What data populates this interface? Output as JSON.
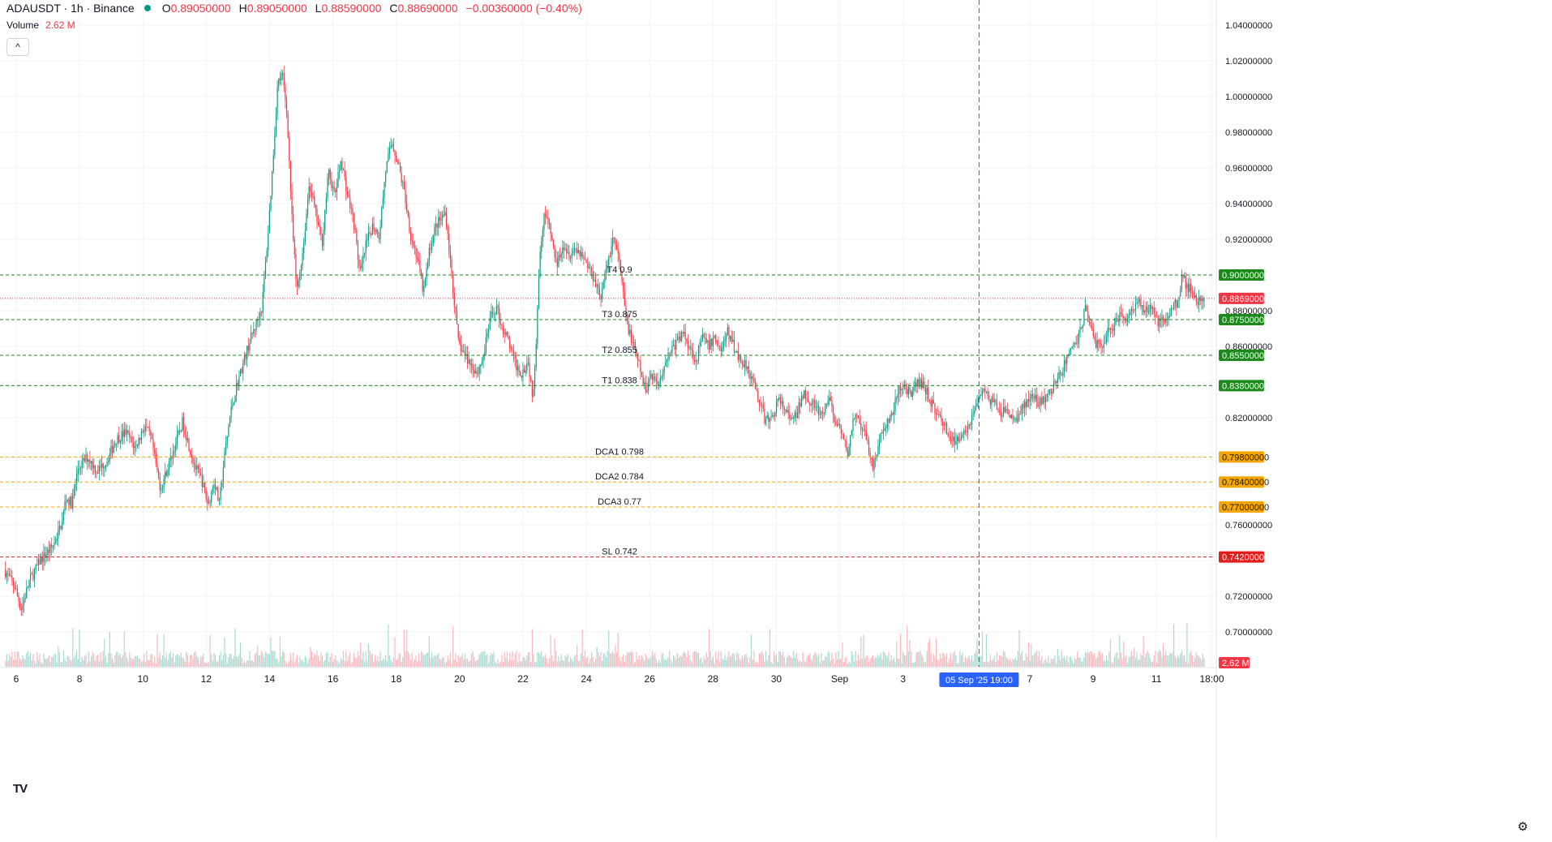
{
  "symbol": {
    "title": "ADAUSDT · 1h · Binance",
    "ohlc": [
      {
        "k": "O",
        "v": "0.89050000"
      },
      {
        "k": "H",
        "v": "0.89050000"
      },
      {
        "k": "L",
        "v": "0.88590000"
      },
      {
        "k": "C",
        "v": "0.88690000"
      },
      {
        "k": "",
        "v": "−0.00360000 (−0.40%)"
      }
    ]
  },
  "volume": {
    "label": "Volume",
    "value": "2.62 M",
    "badge": "2.62 M"
  },
  "controls": {
    "collapse": "^",
    "logo": "TV",
    "settings": "⚙"
  },
  "colors": {
    "up": "#089981",
    "down": "#f23645",
    "green_level": "#1b8a1b",
    "orange_level": "#f7a600",
    "red_level": "#e51c1c",
    "crosshair": "#2962ff"
  },
  "chart_data": {
    "type": "candlestick",
    "y_axis": {
      "min": 0.71,
      "max": 1.044,
      "ticks": [
        1.04,
        1.02,
        1.0,
        0.98,
        0.96,
        0.94,
        0.92,
        0.88,
        0.86,
        0.82,
        0.76,
        0.72,
        0.7
      ],
      "tick_labels": [
        "1.04000000",
        "1.02000000",
        "1.00000000",
        "0.98000000",
        "0.96000000",
        "0.94000000",
        "0.92000000",
        "0.88000000",
        "0.86000000",
        "0.82000000",
        "0.76000000",
        "0.72000000",
        "0.70000000"
      ]
    },
    "x_axis": {
      "tick_labels": [
        "6",
        "8",
        "10",
        "12",
        "14",
        "16",
        "18",
        "20",
        "22",
        "24",
        "26",
        "28",
        "30",
        "Sep",
        "3",
        "7",
        "9",
        "11",
        "18:00"
      ],
      "tick_days": [
        6,
        8,
        10,
        12,
        14,
        16,
        18,
        20,
        22,
        24,
        26,
        28,
        30,
        32,
        34,
        38,
        40,
        42,
        43.75
      ],
      "start_day": 5.66,
      "end_day": 43.55
    },
    "levels": [
      {
        "label": "T4 0.9",
        "value": 0.9,
        "badge": "0.90000000",
        "kind": "green"
      },
      {
        "label": "T3 0.875",
        "value": 0.875,
        "badge": "0.87500000",
        "kind": "green"
      },
      {
        "label": "T2 0.855",
        "value": 0.855,
        "badge": "0.85500000",
        "kind": "green"
      },
      {
        "label": "T1 0.838",
        "value": 0.838,
        "badge": "0.83800000",
        "kind": "green"
      },
      {
        "label": "DCA1 0.798",
        "value": 0.798,
        "badge": "0.79800000",
        "kind": "orange"
      },
      {
        "label": "DCA2 0.784",
        "value": 0.784,
        "badge": "0.78400000",
        "kind": "orange"
      },
      {
        "label": "DCA3 0.77",
        "value": 0.77,
        "badge": "0.77000000",
        "kind": "orange"
      },
      {
        "label": "SL 0.742",
        "value": 0.742,
        "badge": "0.74200000",
        "kind": "red"
      }
    ],
    "current_price": {
      "value": 0.8869,
      "badge": "0.88690000"
    },
    "crosshair": {
      "day": 36.4,
      "label": "05 Sep '25   19:00"
    },
    "price_path": [
      [
        5.66,
        0.735
      ],
      [
        6.0,
        0.725
      ],
      [
        6.2,
        0.713
      ],
      [
        6.45,
        0.728
      ],
      [
        6.8,
        0.74
      ],
      [
        7.2,
        0.748
      ],
      [
        7.5,
        0.762
      ],
      [
        7.6,
        0.775
      ],
      [
        7.8,
        0.772
      ],
      [
        8.0,
        0.792
      ],
      [
        8.3,
        0.798
      ],
      [
        8.6,
        0.79
      ],
      [
        8.9,
        0.796
      ],
      [
        9.2,
        0.808
      ],
      [
        9.5,
        0.812
      ],
      [
        9.8,
        0.803
      ],
      [
        10.1,
        0.816
      ],
      [
        10.3,
        0.808
      ],
      [
        10.6,
        0.78
      ],
      [
        10.9,
        0.796
      ],
      [
        11.1,
        0.807
      ],
      [
        11.3,
        0.818
      ],
      [
        11.5,
        0.804
      ],
      [
        11.7,
        0.792
      ],
      [
        11.9,
        0.785
      ],
      [
        12.1,
        0.771
      ],
      [
        12.3,
        0.785
      ],
      [
        12.45,
        0.771
      ],
      [
        12.6,
        0.796
      ],
      [
        12.8,
        0.822
      ],
      [
        13.0,
        0.838
      ],
      [
        13.2,
        0.85
      ],
      [
        13.4,
        0.862
      ],
      [
        13.6,
        0.872
      ],
      [
        13.8,
        0.882
      ],
      [
        14.0,
        0.925
      ],
      [
        14.15,
        0.965
      ],
      [
        14.3,
        1.008
      ],
      [
        14.45,
        1.012
      ],
      [
        14.6,
        0.988
      ],
      [
        14.75,
        0.93
      ],
      [
        14.9,
        0.89
      ],
      [
        15.1,
        0.915
      ],
      [
        15.3,
        0.952
      ],
      [
        15.5,
        0.934
      ],
      [
        15.7,
        0.918
      ],
      [
        15.9,
        0.958
      ],
      [
        16.1,
        0.944
      ],
      [
        16.3,
        0.965
      ],
      [
        16.5,
        0.945
      ],
      [
        16.7,
        0.93
      ],
      [
        16.9,
        0.9
      ],
      [
        17.1,
        0.918
      ],
      [
        17.3,
        0.928
      ],
      [
        17.5,
        0.922
      ],
      [
        17.7,
        0.958
      ],
      [
        17.9,
        0.975
      ],
      [
        18.1,
        0.962
      ],
      [
        18.3,
        0.946
      ],
      [
        18.5,
        0.922
      ],
      [
        18.7,
        0.91
      ],
      [
        18.9,
        0.89
      ],
      [
        19.1,
        0.915
      ],
      [
        19.3,
        0.928
      ],
      [
        19.6,
        0.935
      ],
      [
        19.8,
        0.898
      ],
      [
        20.0,
        0.862
      ],
      [
        20.2,
        0.855
      ],
      [
        20.4,
        0.85
      ],
      [
        20.6,
        0.845
      ],
      [
        20.8,
        0.855
      ],
      [
        21.0,
        0.875
      ],
      [
        21.2,
        0.882
      ],
      [
        21.4,
        0.87
      ],
      [
        21.6,
        0.862
      ],
      [
        21.8,
        0.85
      ],
      [
        22.0,
        0.845
      ],
      [
        22.2,
        0.852
      ],
      [
        22.35,
        0.832
      ],
      [
        22.45,
        0.86
      ],
      [
        22.55,
        0.905
      ],
      [
        22.7,
        0.935
      ],
      [
        22.9,
        0.925
      ],
      [
        23.1,
        0.905
      ],
      [
        23.3,
        0.918
      ],
      [
        23.5,
        0.912
      ],
      [
        23.7,
        0.915
      ],
      [
        23.9,
        0.912
      ],
      [
        24.1,
        0.905
      ],
      [
        24.3,
        0.898
      ],
      [
        24.5,
        0.888
      ],
      [
        24.7,
        0.905
      ],
      [
        24.9,
        0.922
      ],
      [
        25.1,
        0.905
      ],
      [
        25.3,
        0.875
      ],
      [
        25.5,
        0.862
      ],
      [
        25.7,
        0.85
      ],
      [
        25.9,
        0.835
      ],
      [
        26.1,
        0.845
      ],
      [
        26.3,
        0.838
      ],
      [
        26.5,
        0.85
      ],
      [
        26.7,
        0.858
      ],
      [
        26.9,
        0.862
      ],
      [
        27.1,
        0.868
      ],
      [
        27.3,
        0.86
      ],
      [
        27.5,
        0.852
      ],
      [
        27.7,
        0.865
      ],
      [
        27.9,
        0.86
      ],
      [
        28.1,
        0.865
      ],
      [
        28.3,
        0.858
      ],
      [
        28.5,
        0.868
      ],
      [
        28.7,
        0.86
      ],
      [
        28.9,
        0.852
      ],
      [
        29.1,
        0.85
      ],
      [
        29.3,
        0.84
      ],
      [
        29.5,
        0.83
      ],
      [
        29.7,
        0.818
      ],
      [
        29.9,
        0.82
      ],
      [
        30.1,
        0.83
      ],
      [
        30.3,
        0.825
      ],
      [
        30.5,
        0.818
      ],
      [
        30.7,
        0.822
      ],
      [
        30.9,
        0.835
      ],
      [
        31.1,
        0.83
      ],
      [
        31.3,
        0.825
      ],
      [
        31.5,
        0.82
      ],
      [
        31.7,
        0.832
      ],
      [
        31.9,
        0.818
      ],
      [
        32.1,
        0.81
      ],
      [
        32.3,
        0.8
      ],
      [
        32.5,
        0.822
      ],
      [
        32.7,
        0.815
      ],
      [
        32.9,
        0.808
      ],
      [
        33.1,
        0.792
      ],
      [
        33.3,
        0.808
      ],
      [
        33.5,
        0.815
      ],
      [
        33.7,
        0.822
      ],
      [
        33.9,
        0.835
      ],
      [
        34.1,
        0.838
      ],
      [
        34.3,
        0.832
      ],
      [
        34.5,
        0.84
      ],
      [
        34.7,
        0.838
      ],
      [
        34.9,
        0.83
      ],
      [
        35.1,
        0.822
      ],
      [
        35.3,
        0.818
      ],
      [
        35.5,
        0.81
      ],
      [
        35.7,
        0.805
      ],
      [
        35.9,
        0.812
      ],
      [
        36.1,
        0.815
      ],
      [
        36.3,
        0.825
      ],
      [
        36.5,
        0.835
      ],
      [
        36.7,
        0.832
      ],
      [
        36.9,
        0.828
      ],
      [
        37.1,
        0.822
      ],
      [
        37.3,
        0.825
      ],
      [
        37.5,
        0.818
      ],
      [
        37.7,
        0.822
      ],
      [
        37.9,
        0.828
      ],
      [
        38.1,
        0.832
      ],
      [
        38.3,
        0.828
      ],
      [
        38.5,
        0.83
      ],
      [
        38.7,
        0.835
      ],
      [
        38.9,
        0.84
      ],
      [
        39.1,
        0.848
      ],
      [
        39.3,
        0.858
      ],
      [
        39.5,
        0.862
      ],
      [
        39.7,
        0.872
      ],
      [
        39.8,
        0.884
      ],
      [
        39.9,
        0.875
      ],
      [
        40.1,
        0.862
      ],
      [
        40.3,
        0.86
      ],
      [
        40.5,
        0.868
      ],
      [
        40.7,
        0.872
      ],
      [
        40.9,
        0.878
      ],
      [
        41.1,
        0.876
      ],
      [
        41.3,
        0.882
      ],
      [
        41.5,
        0.885
      ],
      [
        41.7,
        0.88
      ],
      [
        41.9,
        0.884
      ],
      [
        42.1,
        0.872
      ],
      [
        42.3,
        0.876
      ],
      [
        42.5,
        0.88
      ],
      [
        42.7,
        0.885
      ],
      [
        42.85,
        0.9
      ],
      [
        43.0,
        0.894
      ],
      [
        43.2,
        0.89
      ],
      [
        43.35,
        0.885
      ],
      [
        43.55,
        0.8869
      ]
    ]
  }
}
